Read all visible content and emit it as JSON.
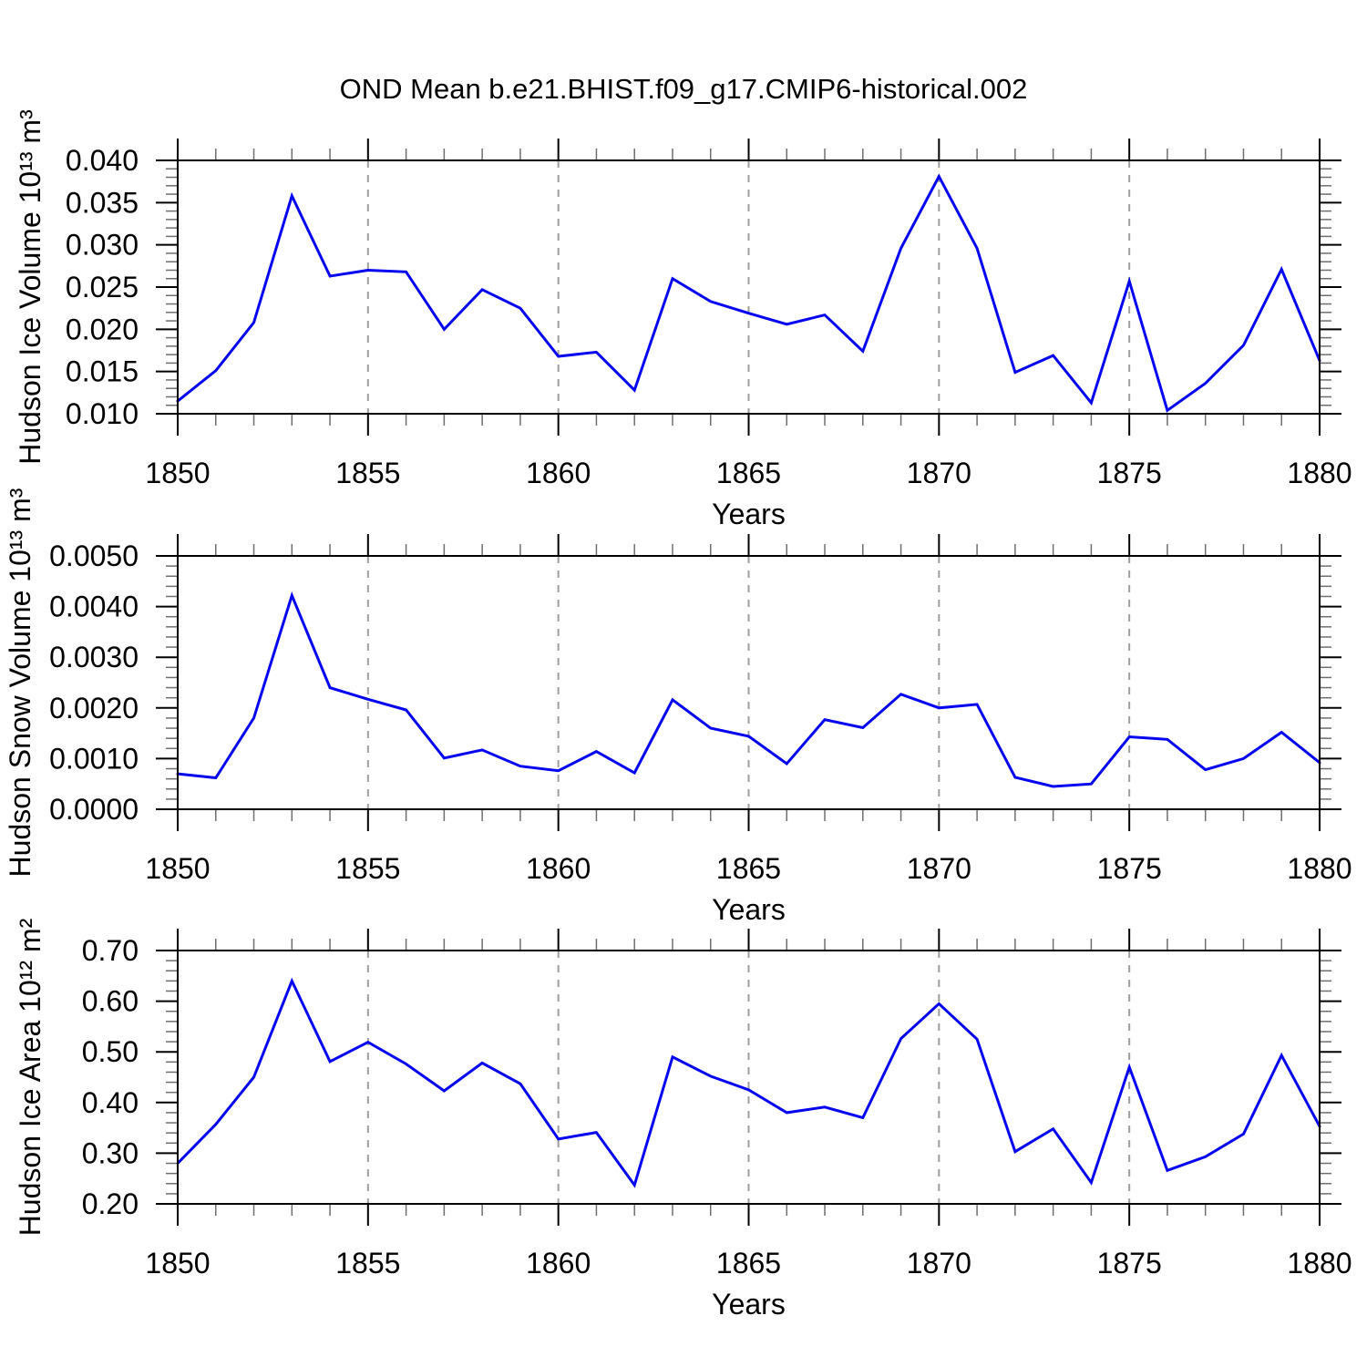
{
  "title": "OND Mean b.e21.BHIST.f09_g17.CMIP6-historical.002",
  "style": {
    "line_color": "#0404f0",
    "grid_color": "#9e9e9e",
    "axis_color": "#000000",
    "minor_tick_color": "#6e6e6e",
    "text_color": "#000000"
  },
  "chart_data": [
    {
      "type": "line",
      "ylabel": "Hudson Ice Volume 10¹³ m³",
      "xlabel": "Years",
      "x_range": [
        1850,
        1880
      ],
      "y_range": [
        0.01,
        0.04
      ],
      "xticks": [
        1850,
        1855,
        1860,
        1865,
        1870,
        1875,
        1880
      ],
      "xtick_labels": [
        "1850",
        "1855",
        "1860",
        "1865",
        "1870",
        "1875",
        "1880"
      ],
      "x_minor_step": 1,
      "yticks": [
        0.01,
        0.015,
        0.02,
        0.025,
        0.03,
        0.035,
        0.04
      ],
      "ytick_labels": [
        "0.010",
        "0.015",
        "0.020",
        "0.025",
        "0.030",
        "0.035",
        "0.040"
      ],
      "y_minor_step": 0.001,
      "grid_x": [
        1855,
        1860,
        1865,
        1870,
        1875
      ],
      "x": [
        1850,
        1851,
        1852,
        1853,
        1854,
        1855,
        1856,
        1857,
        1858,
        1859,
        1860,
        1861,
        1862,
        1863,
        1864,
        1865,
        1866,
        1867,
        1868,
        1869,
        1870,
        1871,
        1872,
        1873,
        1874,
        1875,
        1876,
        1877,
        1878,
        1879,
        1880
      ],
      "values": [
        0.0115,
        0.0151,
        0.0208,
        0.0358,
        0.0263,
        0.027,
        0.0268,
        0.02,
        0.0247,
        0.0225,
        0.0168,
        0.0173,
        0.0128,
        0.026,
        0.0233,
        0.0219,
        0.0206,
        0.0217,
        0.0174,
        0.0296,
        0.0381,
        0.0296,
        0.0149,
        0.0169,
        0.0113,
        0.0257,
        0.0104,
        0.0136,
        0.0181,
        0.0271,
        0.0163
      ]
    },
    {
      "type": "line",
      "ylabel": "Hudson Snow Volume 10¹³ m³",
      "xlabel": "Years",
      "x_range": [
        1850,
        1880
      ],
      "y_range": [
        0.0,
        0.005
      ],
      "xticks": [
        1850,
        1855,
        1860,
        1865,
        1870,
        1875,
        1880
      ],
      "xtick_labels": [
        "1850",
        "1855",
        "1860",
        "1865",
        "1870",
        "1875",
        "1880"
      ],
      "x_minor_step": 1,
      "yticks": [
        0.0,
        0.001,
        0.002,
        0.003,
        0.004,
        0.005
      ],
      "ytick_labels": [
        "0.0000",
        "0.0010",
        "0.0020",
        "0.0030",
        "0.0040",
        "0.0050"
      ],
      "y_minor_step": 0.0002,
      "grid_x": [
        1855,
        1860,
        1865,
        1870,
        1875
      ],
      "x": [
        1850,
        1851,
        1852,
        1853,
        1854,
        1855,
        1856,
        1857,
        1858,
        1859,
        1860,
        1861,
        1862,
        1863,
        1864,
        1865,
        1866,
        1867,
        1868,
        1869,
        1870,
        1871,
        1872,
        1873,
        1874,
        1875,
        1876,
        1877,
        1878,
        1879,
        1880
      ],
      "values": [
        0.0007,
        0.00062,
        0.0018,
        0.00422,
        0.0024,
        0.00217,
        0.00196,
        0.00101,
        0.00117,
        0.00085,
        0.00076,
        0.00114,
        0.00072,
        0.00216,
        0.0016,
        0.00144,
        0.0009,
        0.00177,
        0.00161,
        0.00227,
        0.002,
        0.00207,
        0.00063,
        0.00045,
        0.0005,
        0.00143,
        0.00138,
        0.00078,
        0.001,
        0.00152,
        0.00092
      ]
    },
    {
      "type": "line",
      "ylabel": "Hudson Ice Area 10¹² m²",
      "xlabel": "Years",
      "x_range": [
        1850,
        1880
      ],
      "y_range": [
        0.2,
        0.7
      ],
      "xticks": [
        1850,
        1855,
        1860,
        1865,
        1870,
        1875,
        1880
      ],
      "xtick_labels": [
        "1850",
        "1855",
        "1860",
        "1865",
        "1870",
        "1875",
        "1880"
      ],
      "x_minor_step": 1,
      "yticks": [
        0.2,
        0.3,
        0.4,
        0.5,
        0.6,
        0.7
      ],
      "ytick_labels": [
        "0.20",
        "0.30",
        "0.40",
        "0.50",
        "0.60",
        "0.70"
      ],
      "y_minor_step": 0.02,
      "grid_x": [
        1855,
        1860,
        1865,
        1870,
        1875
      ],
      "x": [
        1850,
        1851,
        1852,
        1853,
        1854,
        1855,
        1856,
        1857,
        1858,
        1859,
        1860,
        1861,
        1862,
        1863,
        1864,
        1865,
        1866,
        1867,
        1868,
        1869,
        1870,
        1871,
        1872,
        1873,
        1874,
        1875,
        1876,
        1877,
        1878,
        1879,
        1880
      ],
      "values": [
        0.28,
        0.357,
        0.45,
        0.64,
        0.481,
        0.519,
        0.476,
        0.423,
        0.478,
        0.437,
        0.328,
        0.341,
        0.237,
        0.49,
        0.452,
        0.425,
        0.38,
        0.391,
        0.37,
        0.526,
        0.595,
        0.525,
        0.303,
        0.348,
        0.242,
        0.47,
        0.266,
        0.293,
        0.338,
        0.493,
        0.353
      ]
    }
  ]
}
